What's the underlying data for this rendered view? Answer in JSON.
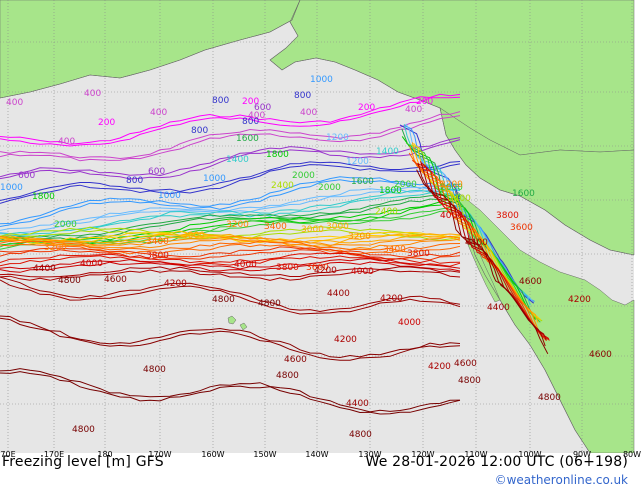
{
  "map": {
    "colors": {
      "ocean": "#e6e6e6",
      "land": "#a7e58a",
      "coast": "#666666",
      "graticule": "#8a8a8a"
    },
    "contour_levels": [
      {
        "value": 200,
        "color": "#ff00ff"
      },
      {
        "value": 400,
        "color": "#cc44cc"
      },
      {
        "value": 600,
        "color": "#9933cc"
      },
      {
        "value": 800,
        "color": "#3333cc"
      },
      {
        "value": 1000,
        "color": "#3399ff"
      },
      {
        "value": 1200,
        "color": "#66bbff"
      },
      {
        "value": 1400,
        "color": "#33cccc"
      },
      {
        "value": 1600,
        "color": "#22aa44"
      },
      {
        "value": 1800,
        "color": "#00cc00"
      },
      {
        "value": 2000,
        "color": "#33cc33"
      },
      {
        "value": 2400,
        "color": "#aadd00"
      },
      {
        "value": 2800,
        "color": "#ffcc00"
      },
      {
        "value": 3000,
        "color": "#ffaa00"
      },
      {
        "value": 3200,
        "color": "#ff8800"
      },
      {
        "value": 3400,
        "color": "#ff6600"
      },
      {
        "value": 3600,
        "color": "#ee3300"
      },
      {
        "value": 3800,
        "color": "#dd1100"
      },
      {
        "value": 4000,
        "color": "#cc0000"
      },
      {
        "value": 4200,
        "color": "#aa0000"
      },
      {
        "value": 4400,
        "color": "#990000"
      },
      {
        "value": 4600,
        "color": "#880000"
      },
      {
        "value": 4800,
        "color": "#770000"
      }
    ],
    "labels": [
      {
        "text": "400",
        "level": 400
      },
      {
        "text": "1000",
        "level": 1000
      },
      {
        "text": "200",
        "level": 200
      },
      {
        "text": "800",
        "level": 800
      },
      {
        "text": "600",
        "level": 600
      },
      {
        "text": "1200",
        "level": 1200
      },
      {
        "text": "1400",
        "level": 1400
      },
      {
        "text": "1600",
        "level": 1600
      },
      {
        "text": "1800",
        "level": 1800
      },
      {
        "text": "2000",
        "level": 2000
      },
      {
        "text": "2400",
        "level": 2400
      },
      {
        "text": "3000",
        "level": 3000
      },
      {
        "text": "3200",
        "level": 3200
      },
      {
        "text": "3400",
        "level": 3400
      },
      {
        "text": "3600",
        "level": 3600
      },
      {
        "text": "3800",
        "level": 3800
      },
      {
        "text": "4000",
        "level": 4000
      },
      {
        "text": "4200",
        "level": 4200
      },
      {
        "text": "4400",
        "level": 4400
      },
      {
        "text": "4600",
        "level": 4600
      },
      {
        "text": "4800",
        "level": 4800
      }
    ]
  },
  "footer": {
    "title": "Freezing level [m] GFS",
    "valid_time": "We 28-01-2026 12:00 UTC (06+198)",
    "copyright": "©weatheronline.co.uk",
    "lon_ticks": [
      "70E",
      "170E",
      "180",
      "170W",
      "160W",
      "150W",
      "140W",
      "130W",
      "120W",
      "110W",
      "100W",
      "90W",
      "80W"
    ]
  }
}
